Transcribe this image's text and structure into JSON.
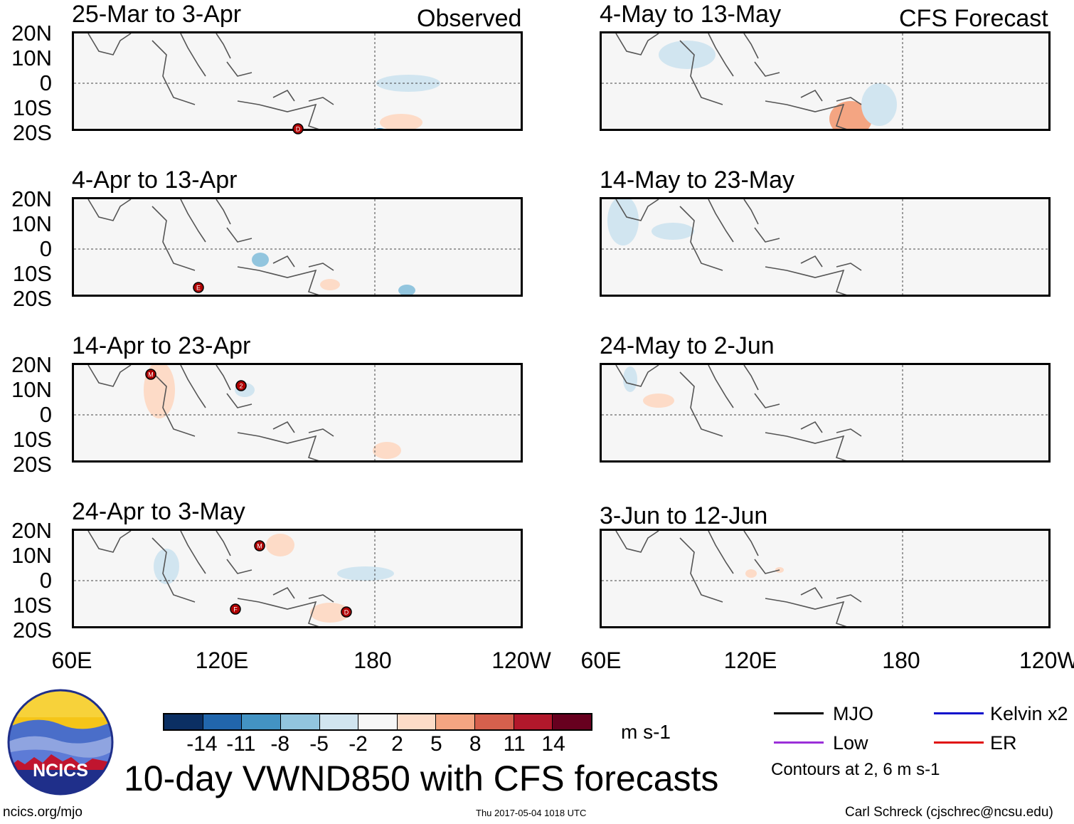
{
  "header": {
    "observed_label": "Observed",
    "forecast_label": "CFS Forecast"
  },
  "panels": [
    {
      "title": "25-Mar to 3-Apr"
    },
    {
      "title": "4-Apr to 13-Apr"
    },
    {
      "title": "14-Apr to 23-Apr"
    },
    {
      "title": "24-Apr to 3-May"
    },
    {
      "title": "4-May to 13-May"
    },
    {
      "title": "14-May to 23-May"
    },
    {
      "title": "24-May to 2-Jun"
    },
    {
      "title": "3-Jun to 12-Jun"
    }
  ],
  "lat_labels": [
    "20N",
    "10N",
    "0",
    "10S",
    "20S"
  ],
  "lon_labels": [
    "60E",
    "120E",
    "180",
    "120W"
  ],
  "markers": [
    {
      "panel": 0,
      "label": "D"
    },
    {
      "panel": 1,
      "label": "E"
    },
    {
      "panel": 2,
      "label": "M"
    },
    {
      "panel": 2,
      "label": "2"
    },
    {
      "panel": 3,
      "label": "M"
    },
    {
      "panel": 3,
      "label": "F"
    },
    {
      "panel": 3,
      "label": "D"
    }
  ],
  "colorbar": {
    "ticks": [
      "-14",
      "-11",
      "-8",
      "-5",
      "-2",
      "2",
      "5",
      "8",
      "11",
      "14"
    ],
    "colors": [
      "#0b2f63",
      "#2166ac",
      "#4393c3",
      "#92c5de",
      "#d1e5f0",
      "#f7f7f7",
      "#fddbc7",
      "#f4a582",
      "#d6604d",
      "#b2182b",
      "#67001f"
    ],
    "units": "m s-1"
  },
  "legend": {
    "items": [
      {
        "label": "MJO",
        "color": "#000000"
      },
      {
        "label": "Kelvin x2",
        "color": "#1010cc"
      },
      {
        "label": "Low",
        "color": "#9b30d9"
      },
      {
        "label": "ER",
        "color": "#e01010"
      }
    ],
    "contours_note": "Contours at 2, 6 m s-1"
  },
  "main_title": "10-day VWND850 with CFS forecasts",
  "logo_text": "NCICS",
  "footer": {
    "url": "ncics.org/mjo",
    "timestamp": "Thu 2017-05-04 1018 UTC",
    "author": "Carl Schreck (cjschrec@ncsu.edu)"
  }
}
